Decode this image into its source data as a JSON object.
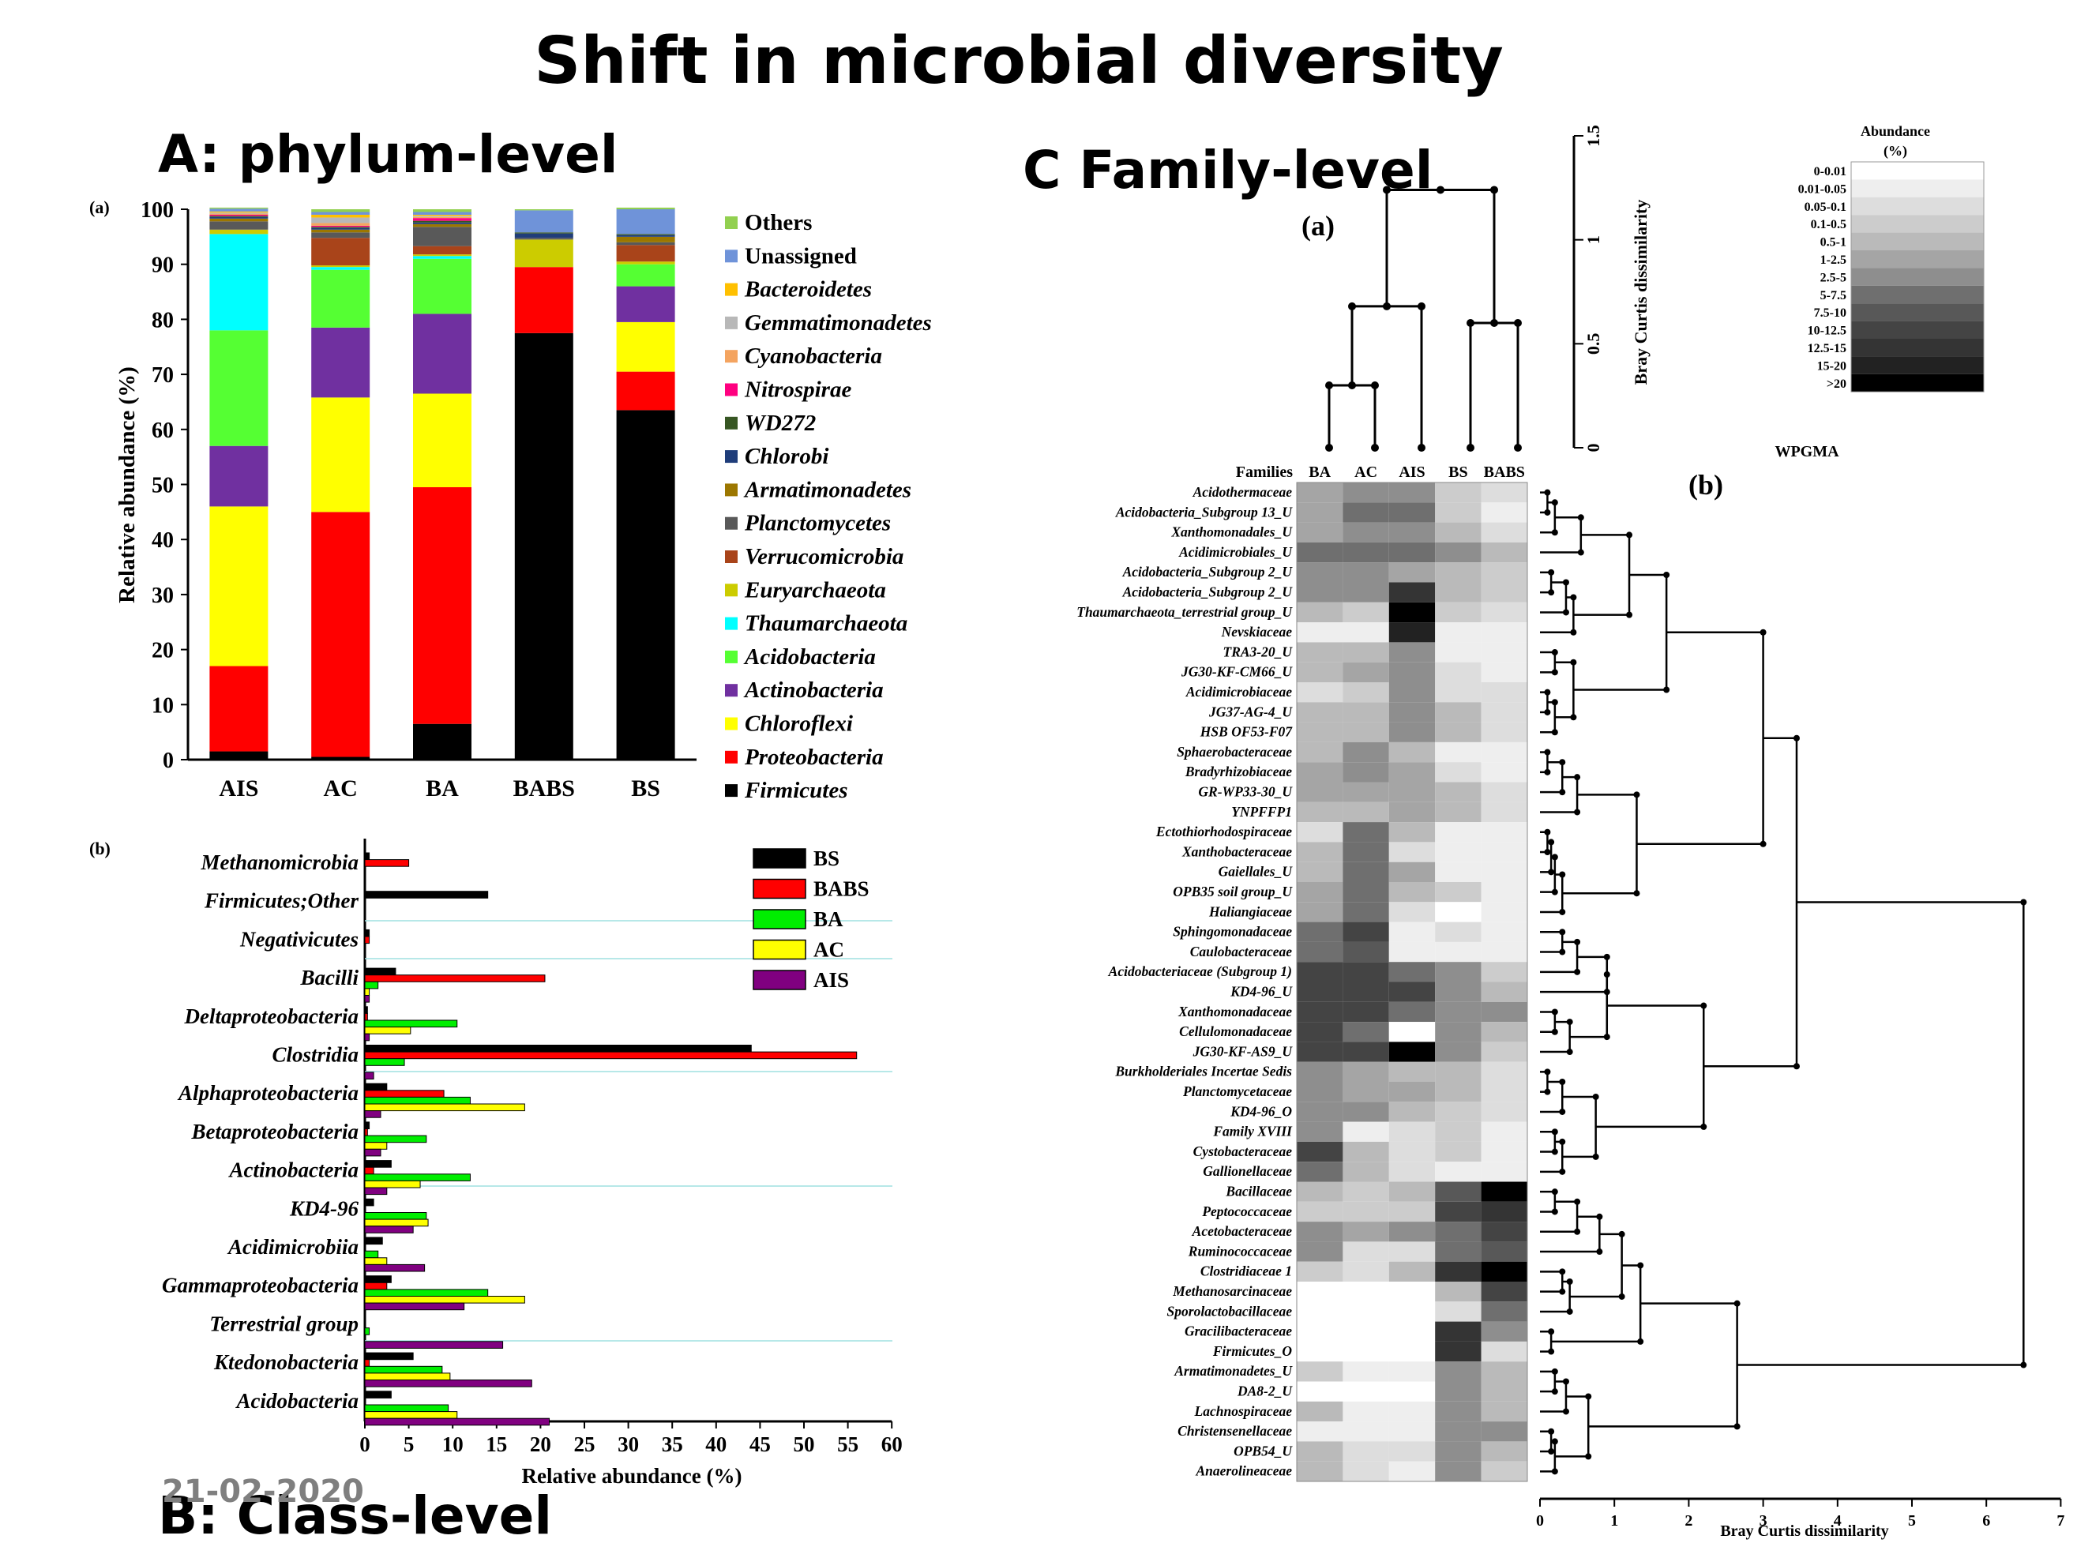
{
  "page_title": "Shift in microbial diversity",
  "footer_date": "21-02-2020",
  "colors": {
    "bs": "#000000",
    "babs": "#ff0000",
    "ba": "#00ee00",
    "ac": "#ffff00",
    "ais": "#800080"
  },
  "chart_data": [
    {
      "type": "bar",
      "stacked": true,
      "section_label": "A: phylum-level",
      "panel_label": "(a)",
      "ylabel": "Relative abundance (%)",
      "ylim": [
        0,
        100
      ],
      "yticks": [
        0,
        10,
        20,
        30,
        40,
        50,
        60,
        70,
        80,
        90,
        100
      ],
      "categories": [
        "AIS",
        "AC",
        "BA",
        "BABS",
        "BS"
      ],
      "series": [
        {
          "name": "Firmicutes",
          "italic": true,
          "color": "#000000",
          "values": [
            1.5,
            0.5,
            6.5,
            77.5,
            63.5
          ]
        },
        {
          "name": "Proteobacteria",
          "italic": true,
          "color": "#ff0000",
          "values": [
            15.5,
            44.5,
            43.0,
            12.0,
            7.0
          ]
        },
        {
          "name": "Chloroflexi",
          "italic": true,
          "color": "#ffff00",
          "values": [
            29.0,
            20.8,
            17.0,
            0.0,
            9.0
          ]
        },
        {
          "name": "Actinobacteria",
          "italic": true,
          "color": "#7030a0",
          "values": [
            11.0,
            12.7,
            14.5,
            0.0,
            6.5
          ]
        },
        {
          "name": "Acidobacteria",
          "italic": true,
          "color": "#55ff33",
          "values": [
            21.0,
            10.5,
            10.0,
            0.0,
            4.0
          ]
        },
        {
          "name": "Thaumarchaeota",
          "italic": true,
          "color": "#00ffff",
          "values": [
            17.5,
            0.5,
            0.5,
            0.0,
            0.0
          ]
        },
        {
          "name": "Euryarchaeota",
          "italic": true,
          "color": "#cccc00",
          "values": [
            0.8,
            0.3,
            0.3,
            5.0,
            0.5
          ]
        },
        {
          "name": "Verrucomicrobia",
          "italic": true,
          "color": "#a9441a",
          "values": [
            0.0,
            5.0,
            1.5,
            0.0,
            3.0
          ]
        },
        {
          "name": "Planctomycetes",
          "italic": true,
          "color": "#595959",
          "values": [
            1.5,
            1.0,
            3.5,
            0.3,
            0.5
          ]
        },
        {
          "name": "Armatimonadetes",
          "italic": true,
          "color": "#9c7700",
          "values": [
            0.5,
            0.5,
            0.5,
            0.0,
            1.0
          ]
        },
        {
          "name": "Chlorobi",
          "italic": true,
          "color": "#1f3d7a",
          "values": [
            0.3,
            0.3,
            0.3,
            0.8,
            0.3
          ]
        },
        {
          "name": "WD272",
          "italic": true,
          "color": "#375623",
          "values": [
            0.2,
            0.2,
            0.3,
            0.2,
            0.2
          ]
        },
        {
          "name": "Nitrospirae",
          "italic": true,
          "color": "#ff0080",
          "values": [
            0.2,
            0.2,
            0.5,
            0.0,
            0.0
          ]
        },
        {
          "name": "Cyanobacteria",
          "italic": true,
          "color": "#f4a460",
          "values": [
            0.2,
            0.5,
            0.2,
            0.0,
            0.0
          ]
        },
        {
          "name": "Gemmatimonadetes",
          "italic": true,
          "color": "#b8b8b8",
          "values": [
            0.2,
            1.0,
            0.2,
            0.0,
            0.0
          ]
        },
        {
          "name": "Bacteroidetes",
          "italic": true,
          "color": "#ffc000",
          "values": [
            0.2,
            0.5,
            0.2,
            0.0,
            0.0
          ]
        },
        {
          "name": "Unassigned",
          "italic": false,
          "color": "#6f93d9",
          "values": [
            0.5,
            0.5,
            0.5,
            4.0,
            4.5
          ]
        },
        {
          "name": "Others",
          "italic": false,
          "color": "#92d050",
          "values": [
            0.2,
            0.5,
            0.5,
            0.2,
            0.3
          ]
        }
      ]
    },
    {
      "type": "bar",
      "orientation": "horizontal",
      "section_label": "B: Class-level",
      "panel_label": "(b)",
      "xlabel": "Relative abundance (%)",
      "xlim": [
        0,
        60
      ],
      "xticks": [
        0,
        5,
        10,
        15,
        20,
        25,
        30,
        35,
        40,
        45,
        50,
        55,
        60
      ],
      "categories": [
        "Methanomicrobia",
        "Firmicutes;Other",
        "Negativicutes",
        "Bacilli",
        "Deltaproteobacteria",
        "Clostridia",
        "Alphaproteobacteria",
        "Betaproteobacteria",
        "Actinobacteria",
        "KD4-96",
        "Acidimicrobiia",
        "Gammaproteobacteria",
        "Terrestrial group",
        "Ktedonobacteria",
        "Acidobacteria"
      ],
      "series": [
        {
          "name": "BS",
          "color": "#000000",
          "values": [
            0.5,
            14,
            0.5,
            3.5,
            0.3,
            44,
            2.5,
            0.5,
            3,
            1,
            2,
            3,
            0,
            5.5,
            3
          ]
        },
        {
          "name": "BABS",
          "color": "#ff0000",
          "values": [
            5,
            0,
            0.5,
            20.5,
            0.3,
            56,
            9,
            0.3,
            1,
            0,
            0,
            2.5,
            0,
            0.5,
            0
          ]
        },
        {
          "name": "BA",
          "color": "#00ee00",
          "values": [
            0,
            0,
            0,
            1.5,
            10.5,
            4.5,
            12,
            7,
            12,
            7,
            1.5,
            14,
            0.5,
            8.8,
            9.5
          ]
        },
        {
          "name": "AC",
          "color": "#ffff00",
          "values": [
            0,
            0,
            0,
            0.5,
            5.2,
            0,
            18.2,
            2.5,
            6.3,
            7.2,
            2.5,
            18.2,
            0,
            9.7,
            10.5
          ]
        },
        {
          "name": "AIS",
          "color": "#800080",
          "values": [
            0,
            0,
            0,
            0.5,
            0.5,
            1,
            1.8,
            1.8,
            2.5,
            5.5,
            6.8,
            11.3,
            15.7,
            19,
            21
          ]
        }
      ]
    },
    {
      "type": "heatmap",
      "section_label": "C Family-level",
      "panel_label_a": "(a)",
      "panel_label_b": "(b)",
      "families_header": "Families",
      "columns": [
        "BA",
        "AC",
        "AIS",
        "BS",
        "BABS"
      ],
      "rows": [
        "Acidothermaceae",
        "Acidobacteria_Subgroup 13_U",
        "Xanthomonadales_U",
        "Acidimicrobiales_U",
        "Acidobacteria_Subgroup 2_U",
        "Acidobacteria_Subgroup 2_U",
        "Thaumarchaeota_terrestrial group_U",
        "Nevskiaceae",
        "TRA3-20_U",
        "JG30-KF-CM66_U",
        "Acidimicrobiaceae",
        "JG37-AG-4_U",
        "HSB OF53-F07",
        "Sphaerobacteraceae",
        "Bradyrhizobiaceae",
        "GR-WP33-30_U",
        "YNPFFP1",
        "Ectothiorhodospiraceae",
        "Xanthobacteraceae",
        "Gaiellales_U",
        "OPB35 soil group_U",
        "Haliangiaceae",
        "Sphingomonadaceae",
        "Caulobacteraceae",
        "Acidobacteriaceae (Subgroup 1)",
        "KD4-96_U",
        "Xanthomonadaceae",
        "Cellulomonadaceae",
        "JG30-KF-AS9_U",
        "Burkholderiales Incertae Sedis",
        "Planctomycetaceae",
        "KD4-96_O",
        "Family XVIII",
        "Cystobacteraceae",
        "Gallionellaceae",
        "Bacillaceae",
        "Peptococcaceae",
        "Acetobacteraceae",
        "Ruminococcaceae",
        "Clostridiaceae 1",
        "Methanosarcinaceae",
        "Sporolactobacillaceae",
        "Gracilibacteraceae",
        "Firmicutes_O",
        "Armatimonadetes_U",
        "DA8-2_U",
        "Lachnospiraceae",
        "Christensenellaceae",
        "OPB54_U",
        "Anaerolineaceae"
      ],
      "levels": [
        [
          5,
          6,
          6,
          3,
          2
        ],
        [
          5,
          7,
          7,
          3,
          1
        ],
        [
          5,
          6,
          6,
          4,
          2
        ],
        [
          7,
          7,
          7,
          6,
          4
        ],
        [
          6,
          6,
          5,
          4,
          3
        ],
        [
          6,
          6,
          10,
          4,
          3
        ],
        [
          4,
          3,
          13,
          3,
          2
        ],
        [
          1,
          1,
          11,
          1,
          1
        ],
        [
          4,
          4,
          6,
          1,
          1
        ],
        [
          4,
          5,
          6,
          2,
          1
        ],
        [
          2,
          3,
          6,
          2,
          2
        ],
        [
          4,
          4,
          6,
          4,
          2
        ],
        [
          4,
          4,
          6,
          4,
          2
        ],
        [
          4,
          6,
          4,
          1,
          1
        ],
        [
          5,
          6,
          5,
          2,
          1
        ],
        [
          5,
          5,
          5,
          4,
          2
        ],
        [
          4,
          4,
          5,
          4,
          2
        ],
        [
          2,
          7,
          4,
          1,
          1
        ],
        [
          4,
          7,
          2,
          1,
          1
        ],
        [
          4,
          7,
          5,
          1,
          1
        ],
        [
          5,
          7,
          4,
          3,
          1
        ],
        [
          5,
          7,
          2,
          0,
          1
        ],
        [
          7,
          9,
          1,
          2,
          1
        ],
        [
          7,
          8,
          1,
          1,
          1
        ],
        [
          9,
          9,
          7,
          6,
          3
        ],
        [
          9,
          9,
          9,
          6,
          4
        ],
        [
          9,
          9,
          7,
          6,
          6
        ],
        [
          9,
          7,
          0,
          6,
          4
        ],
        [
          9,
          9,
          12,
          6,
          3
        ],
        [
          6,
          5,
          4,
          4,
          2
        ],
        [
          6,
          5,
          5,
          4,
          2
        ],
        [
          6,
          6,
          4,
          3,
          2
        ],
        [
          6,
          1,
          2,
          3,
          1
        ],
        [
          9,
          4,
          2,
          3,
          1
        ],
        [
          7,
          4,
          2,
          1,
          1
        ],
        [
          4,
          3,
          4,
          8,
          12
        ],
        [
          3,
          3,
          3,
          9,
          10
        ],
        [
          6,
          5,
          6,
          7,
          9
        ],
        [
          6,
          2,
          2,
          7,
          8
        ],
        [
          3,
          2,
          4,
          10,
          13
        ],
        [
          0,
          0,
          0,
          4,
          9
        ],
        [
          0,
          0,
          0,
          2,
          7
        ],
        [
          0,
          0,
          0,
          10,
          6
        ],
        [
          0,
          0,
          0,
          10,
          2
        ],
        [
          3,
          1,
          1,
          6,
          4
        ],
        [
          0,
          0,
          0,
          6,
          4
        ],
        [
          4,
          1,
          1,
          6,
          4
        ],
        [
          1,
          1,
          1,
          6,
          6
        ],
        [
          4,
          2,
          2,
          6,
          4
        ],
        [
          4,
          2,
          1,
          6,
          3
        ]
      ],
      "bottom_xlabel": "Bray Curtis dissimilarity",
      "bottom_xticks": [
        0,
        1,
        2,
        3,
        4,
        5,
        6,
        7
      ],
      "top_ylabel": "Bray Curtis dissimilarity",
      "top_yticks": [
        "0",
        "0.5",
        "1",
        "1.5"
      ],
      "method_label": "WPGMA",
      "legend_title": "Abundance",
      "legend_unit": "(%)",
      "legend_bins": [
        "0-0.01",
        "0.01-0.05",
        "0.05-0.1",
        "0.1-0.5",
        "0.5-1",
        "1-2.5",
        "2.5-5",
        "5-7.5",
        "7.5-10",
        "10-12.5",
        "12.5-15",
        "15-20",
        ">20"
      ],
      "legend_colors": [
        "#ffffff",
        "#eeeeee",
        "#dddddd",
        "#cccccc",
        "#bababa",
        "#a5a5a5",
        "#8e8e8e",
        "#6f6f6f",
        "#585858",
        "#444444",
        "#343434",
        "#222222",
        "#000000"
      ]
    }
  ]
}
